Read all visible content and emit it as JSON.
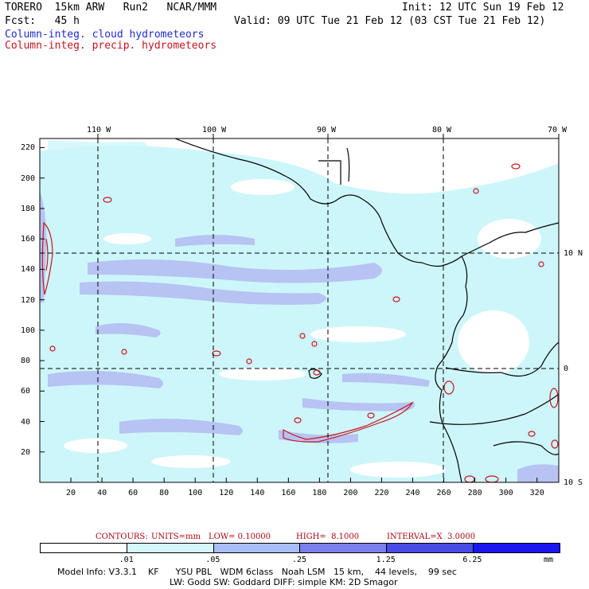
{
  "header": {
    "model": "TORERO  15km ARW   Run2   NCAR/MMM",
    "init": "Init: 12 UTC Sun 19 Feb 12",
    "fcst": "Fcst:   45 h",
    "valid": "Valid: 09 UTC Tue 21 Feb 12 (03 CST Tue 21 Feb 12)",
    "field1": "Column-integ. cloud hydrometeors",
    "field2": "Column-integ. precip. hydrometeors"
  },
  "map": {
    "lon_labels": [
      "110 W",
      "100 W",
      "90 W",
      "80 W",
      "70 W"
    ],
    "lat_labels": [
      "10 N",
      "0",
      "10 S"
    ],
    "y_ticks": [
      "220",
      "200",
      "180",
      "160",
      "140",
      "120",
      "100",
      "80",
      "60",
      "40",
      "20"
    ],
    "x_ticks": [
      "20",
      "40",
      "60",
      "80",
      "100",
      "120",
      "140",
      "160",
      "180",
      "200",
      "220",
      "240",
      "260",
      "280",
      "300",
      "320"
    ]
  },
  "contours": {
    "label": "CONTOURS:",
    "units": "UNITS=mm",
    "low": "LOW= 0.10000",
    "high": "HIGH=  8.1000",
    "interval": "INTERVAL=X  3.0000"
  },
  "colorbar": {
    "ticks": [
      ".01",
      ".05",
      ".25",
      "1.25",
      "6.25"
    ],
    "unit": "mm",
    "colors": [
      "#ffffff",
      "#d6f8fc",
      "#a9bcf3",
      "#7d7fee",
      "#4a4ae6",
      "#1a16f0"
    ]
  },
  "info": {
    "line1": "Model Info: V3.3.1    KF      YSU PBL   WDM 6class   Noah LSM   15 km,    44 levels,    99 sec",
    "line2": "LW: Godd SW: Goddard DIFF: simple KM: 2D Smagor"
  },
  "colors": {
    "cloud_light": "#cdf6fa",
    "cloud_mid": "#b7c3f2",
    "precip_contour": "#c8141e",
    "coast": "#000000"
  }
}
